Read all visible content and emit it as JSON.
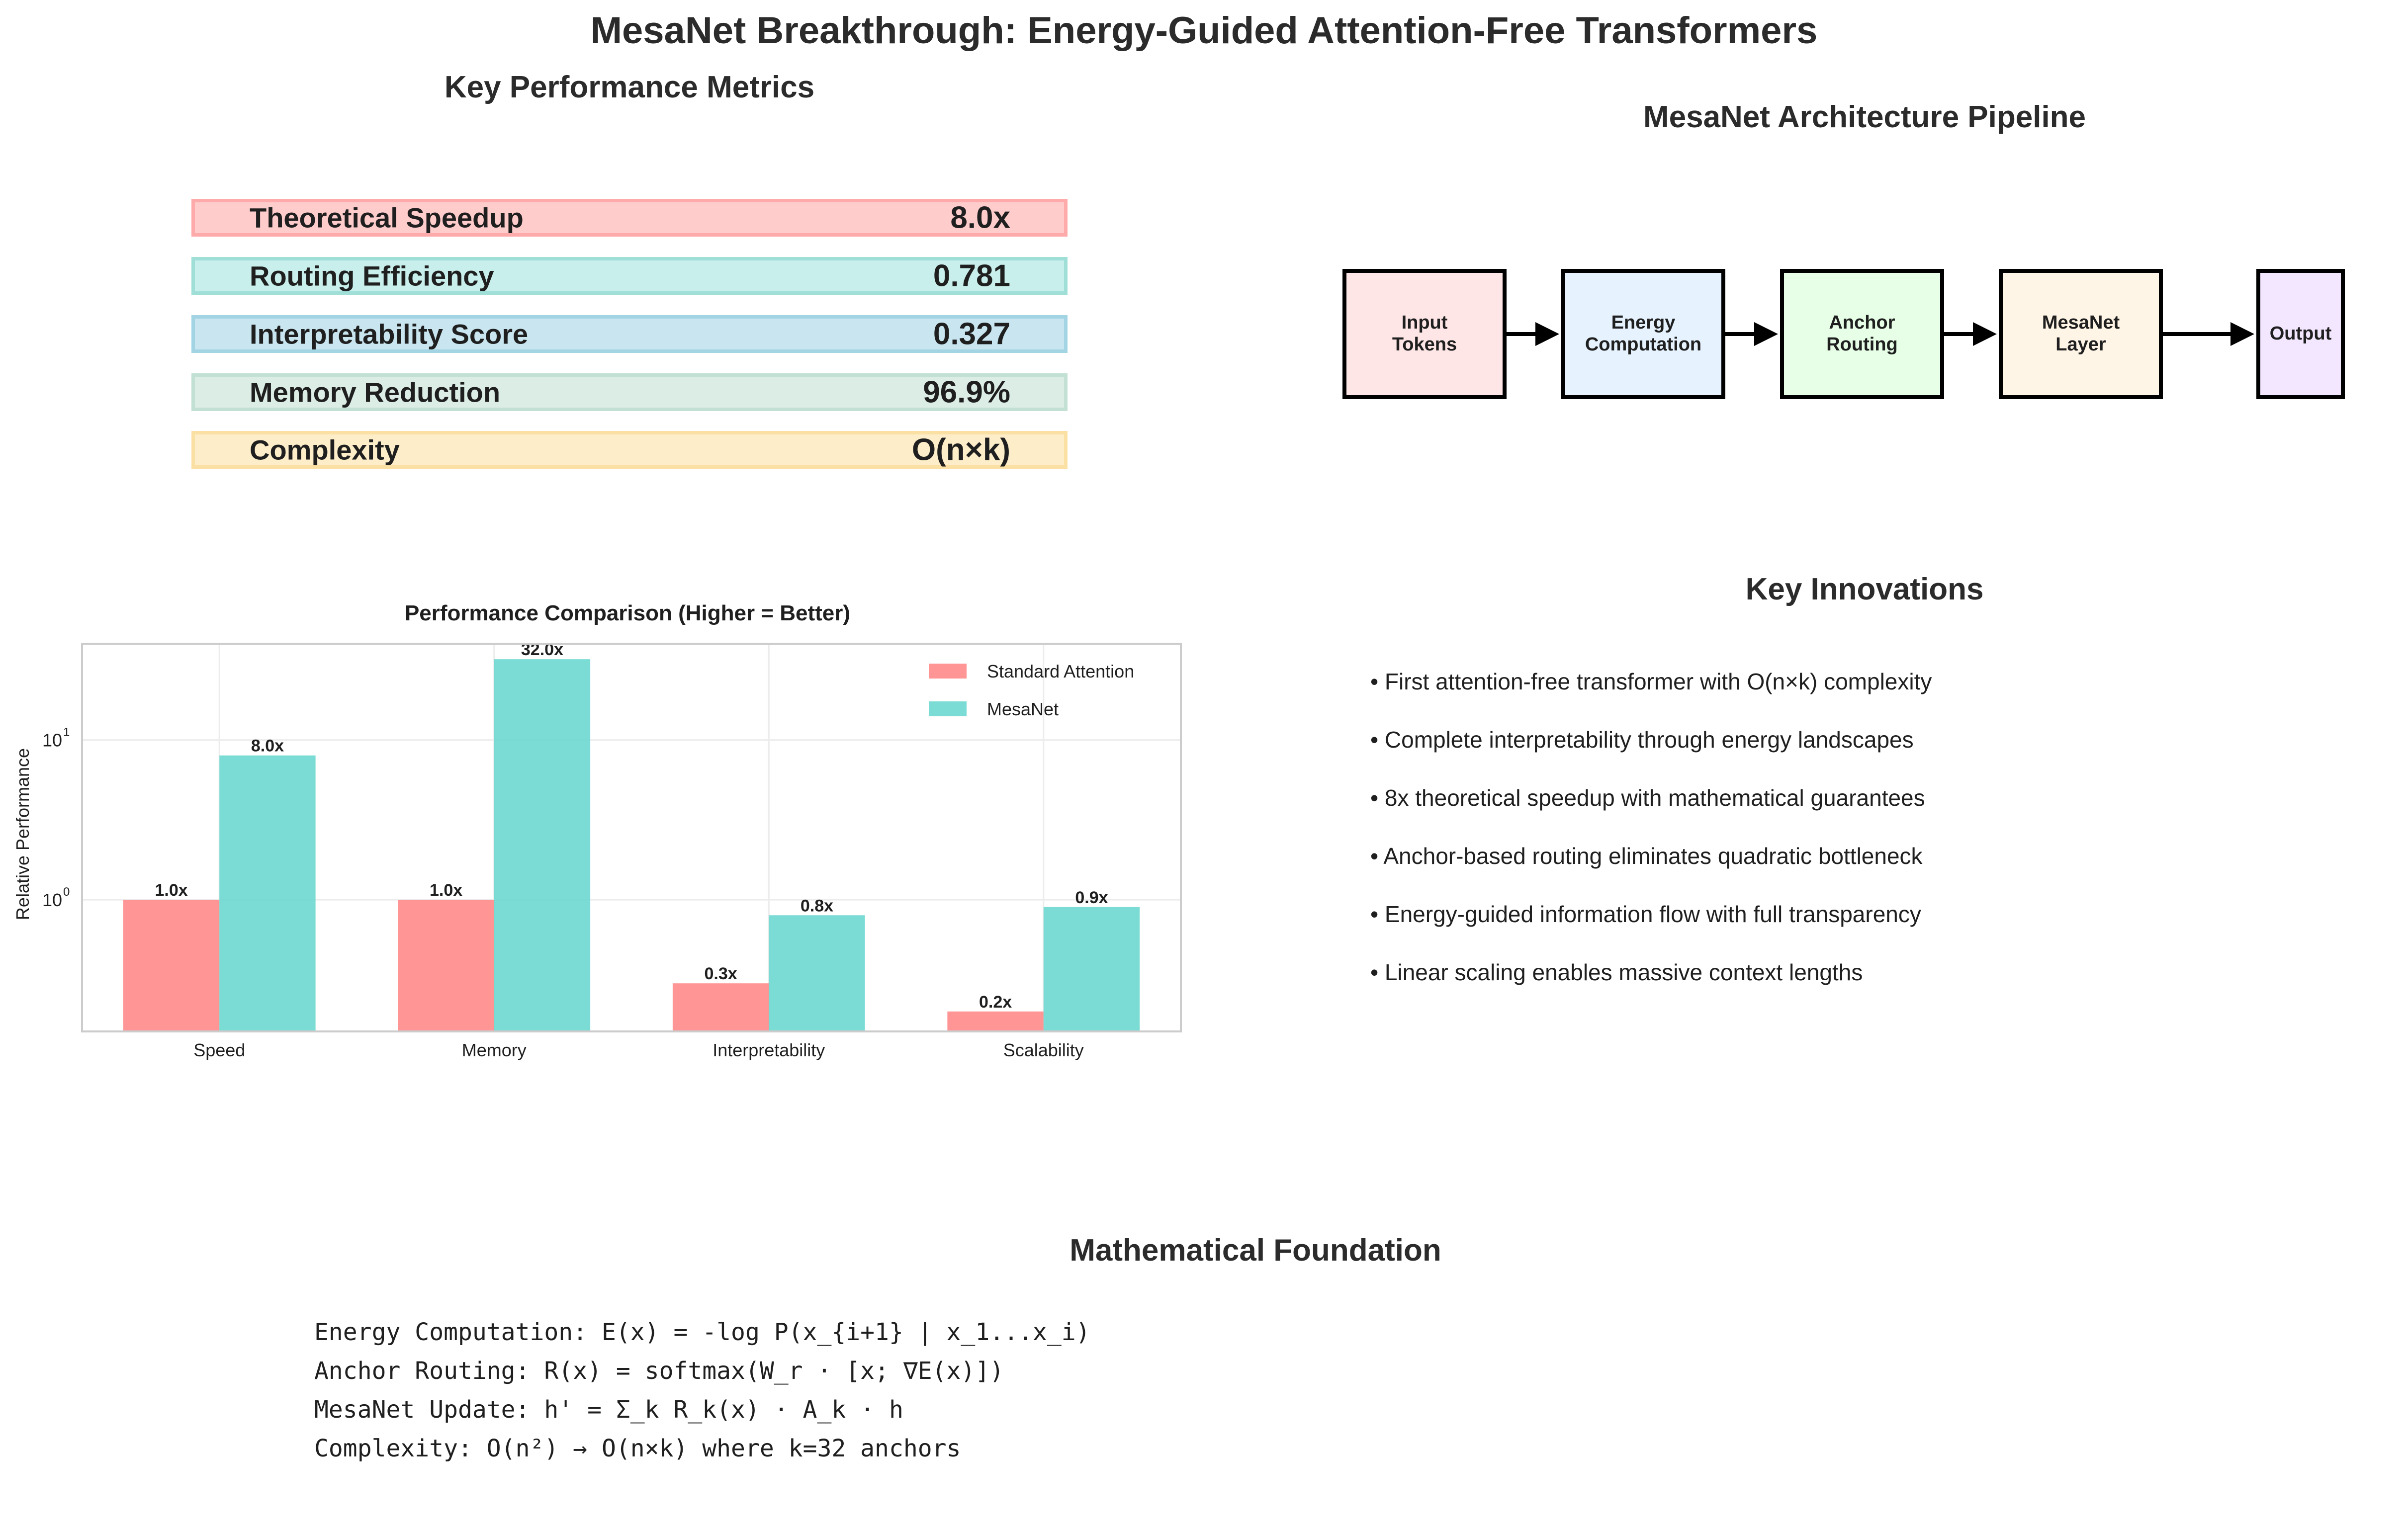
{
  "title": "MesaNet Breakthrough: Energy-Guided Attention-Free Transformers",
  "metrics": {
    "heading": "Key Performance Metrics",
    "rows": [
      {
        "label": "Theoretical Speedup",
        "value": "8.0x",
        "fill": "#ffcccc",
        "border": "#ffaaaa"
      },
      {
        "label": "Routing Efficiency",
        "value": "0.781",
        "fill": "#c8efeb",
        "border": "#9fdfd8"
      },
      {
        "label": "Interpretability Score",
        "value": "0.327",
        "fill": "#c9e6f0",
        "border": "#a3d4e4"
      },
      {
        "label": "Memory Reduction",
        "value": "96.9%",
        "fill": "#dcede6",
        "border": "#c2e0d3"
      },
      {
        "label": "Complexity",
        "value": "O(n×k)",
        "fill": "#fdeec9",
        "border": "#fbe0a4"
      }
    ]
  },
  "pipeline": {
    "heading": "MesaNet Architecture Pipeline",
    "stages": [
      {
        "label": "Input\nTokens",
        "color": "#ffe6e6"
      },
      {
        "label": "Energy\nComputation",
        "color": "#e6f3ff"
      },
      {
        "label": "Anchor\nRouting",
        "color": "#e6ffe6"
      },
      {
        "label": "MesaNet\nLayer",
        "color": "#fff5e6"
      },
      {
        "label": "Output",
        "color": "#f3e6ff"
      }
    ]
  },
  "chart_data": {
    "type": "bar",
    "title": "Performance Comparison (Higher = Better)",
    "xlabel": "",
    "ylabel": "Relative Performance",
    "yscale": "log",
    "ylim": [
      0.15,
      40
    ],
    "yticks": [
      {
        "value": 1,
        "label": "10",
        "exp": "0"
      },
      {
        "value": 10,
        "label": "10",
        "exp": "1"
      }
    ],
    "grid": true,
    "legend_position": "top-right",
    "categories": [
      "Speed",
      "Memory",
      "Interpretability",
      "Scalability"
    ],
    "series": [
      {
        "name": "Standard Attention",
        "color": "#ff8a8a",
        "values": [
          1.0,
          1.0,
          0.3,
          0.2
        ],
        "labels": [
          "1.0x",
          "1.0x",
          "0.3x",
          "0.2x"
        ]
      },
      {
        "name": "MesaNet",
        "color": "#6dd8d0",
        "values": [
          8.0,
          32.0,
          0.8,
          0.9
        ],
        "labels": [
          "8.0x",
          "32.0x",
          "0.8x",
          "0.9x"
        ]
      }
    ]
  },
  "innovations": {
    "heading": "Key Innovations",
    "items": [
      "• First attention-free transformer with O(n×k) complexity",
      "• Complete interpretability through energy landscapes",
      "• 8x theoretical speedup with mathematical guarantees",
      "• Anchor-based routing eliminates quadratic bottleneck",
      "• Energy-guided information flow with full transparency",
      "• Linear scaling enables massive context lengths"
    ]
  },
  "math": {
    "heading": "Mathematical Foundation",
    "lines": [
      "Energy Computation: E(x) = -log P(x_{i+1} | x_1...x_i)",
      "Anchor Routing: R(x) = softmax(W_r · [x; ∇E(x)])",
      "MesaNet Update: h' = Σ_k R_k(x) · A_k · h",
      "Complexity: O(n²) → O(n×k) where k=32 anchors"
    ]
  }
}
